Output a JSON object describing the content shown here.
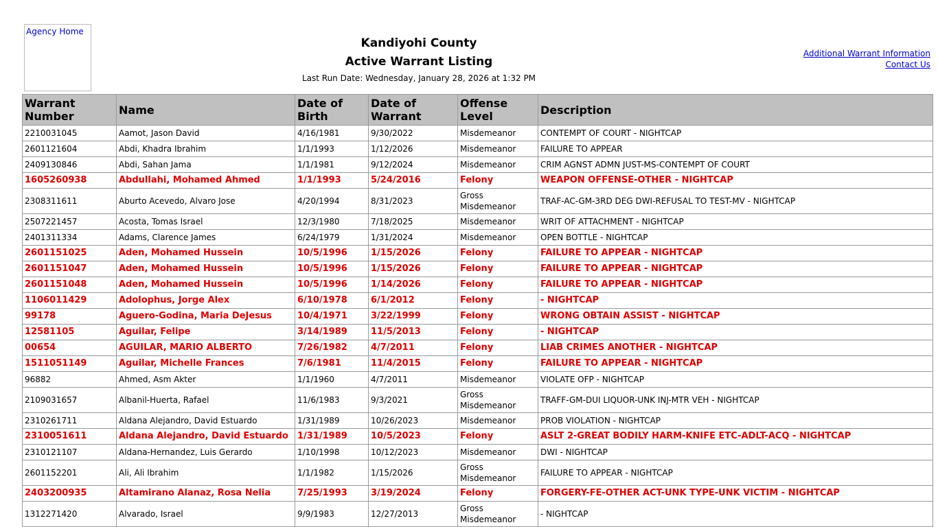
{
  "header": {
    "logo_alt": "Agency Home",
    "county": "Kandiyohi County",
    "title": "Active Warrant Listing",
    "run_date": "Last Run Date: Wednesday, January 28, 2026 at 1:32 PM",
    "links": [
      "Additional Warrant Information",
      "Contact Us"
    ]
  },
  "table": {
    "columns": [
      "Warrant Number",
      "Name",
      "Date of Birth",
      "Date of Warrant",
      "Offense Level",
      "Description"
    ],
    "rows": [
      [
        "2210031045",
        "Aamot, Jason David",
        "4/16/1981",
        "9/30/2022",
        "Misdemeanor",
        "CONTEMPT OF COURT - NIGHTCAP"
      ],
      [
        "2601121604",
        "Abdi, Khadra Ibrahim",
        "1/1/1993",
        "1/12/2026",
        "Misdemeanor",
        "FAILURE TO APPEAR"
      ],
      [
        "2409130846",
        "Abdi, Sahan Jama",
        "1/1/1981",
        "9/12/2024",
        "Misdemeanor",
        "CRIM AGNST ADMN JUST-MS-CONTEMPT OF COURT"
      ],
      [
        "1605260938",
        "Abdullahi, Mohamed Ahmed",
        "1/1/1993",
        "5/24/2016",
        "Felony",
        "WEAPON OFFENSE-OTHER - NIGHTCAP"
      ],
      [
        "2308311611",
        "Aburto Acevedo, Alvaro Jose",
        "4/20/1994",
        "8/31/2023",
        "Gross Misdemeanor",
        "TRAF-AC-GM-3RD DEG DWI-REFUSAL TO TEST-MV - NIGHTCAP"
      ],
      [
        "2507221457",
        "Acosta, Tomas Israel",
        "12/3/1980",
        "7/18/2025",
        "Misdemeanor",
        "WRIT OF ATTACHMENT - NIGHTCAP"
      ],
      [
        "2401311334",
        "Adams, Clarence James",
        "6/24/1979",
        "1/31/2024",
        "Misdemeanor",
        "OPEN BOTTLE - NIGHTCAP"
      ],
      [
        "2601151025",
        "Aden, Mohamed Hussein",
        "10/5/1996",
        "1/15/2026",
        "Felony",
        "FAILURE TO APPEAR - NIGHTCAP"
      ],
      [
        "2601151047",
        "Aden, Mohamed Hussein",
        "10/5/1996",
        "1/15/2026",
        "Felony",
        "FAILURE TO APPEAR - NIGHTCAP"
      ],
      [
        "2601151048",
        "Aden, Mohamed Hussein",
        "10/5/1996",
        "1/14/2026",
        "Felony",
        "FAILURE TO APPEAR - NIGHTCAP"
      ],
      [
        "1106011429",
        "Adolophus, Jorge Alex",
        "6/10/1978",
        "6/1/2012",
        "Felony",
        "- NIGHTCAP"
      ],
      [
        "99178",
        "Aguero-Godina, Maria DeJesus",
        "10/4/1971",
        "3/22/1999",
        "Felony",
        "WRONG OBTAIN ASSIST - NIGHTCAP"
      ],
      [
        "12581105",
        "Aguilar, Felipe",
        "3/14/1989",
        "11/5/2013",
        "Felony",
        "- NIGHTCAP"
      ],
      [
        "00654",
        "AGUILAR, MARIO ALBERTO",
        "7/26/1982",
        "4/7/2011",
        "Felony",
        "LIAB CRIMES ANOTHER - NIGHTCAP"
      ],
      [
        "1511051149",
        "Aguilar, Michelle Frances",
        "7/6/1981",
        "11/4/2015",
        "Felony",
        "FAILURE TO APPEAR - NIGHTCAP"
      ],
      [
        "96882",
        "Ahmed, Asm Akter",
        "1/1/1960",
        "4/7/2011",
        "Misdemeanor",
        "VIOLATE OFP - NIGHTCAP"
      ],
      [
        "2109031657",
        "Albanil-Huerta, Rafael",
        "11/6/1983",
        "9/3/2021",
        "Gross Misdemeanor",
        "TRAFF-GM-DUI LIQUOR-UNK INJ-MTR VEH - NIGHTCAP"
      ],
      [
        "2310261711",
        "Aldana Alejandro, David Estuardo",
        "1/31/1989",
        "10/26/2023",
        "Misdemeanor",
        "PROB VIOLATION - NIGHTCAP"
      ],
      [
        "2310051611",
        "Aldana Alejandro, David Estuardo",
        "1/31/1989",
        "10/5/2023",
        "Felony",
        "ASLT 2-GREAT BODILY HARM-KNIFE ETC-ADLT-ACQ - NIGHTCAP"
      ],
      [
        "2310121107",
        "Aldana-Hernandez, Luis Gerardo",
        "1/10/1998",
        "10/12/2023",
        "Misdemeanor",
        "DWI - NIGHTCAP"
      ],
      [
        "2601152201",
        "Ali, Ali Ibrahim",
        "1/1/1982",
        "1/15/2026",
        "Gross Misdemeanor",
        "FAILURE TO APPEAR - NIGHTCAP"
      ],
      [
        "2403200935",
        "Altamirano Alanaz, Rosa Nelia",
        "7/25/1993",
        "3/19/2024",
        "Felony",
        "FORGERY-FE-OTHER ACT-UNK TYPE-UNK VICTIM - NIGHTCAP"
      ],
      [
        "1312271420",
        "Alvarado, Israel",
        "9/9/1983",
        "12/27/2013",
        "Gross Misdemeanor",
        "- NIGHTCAP"
      ]
    ]
  }
}
